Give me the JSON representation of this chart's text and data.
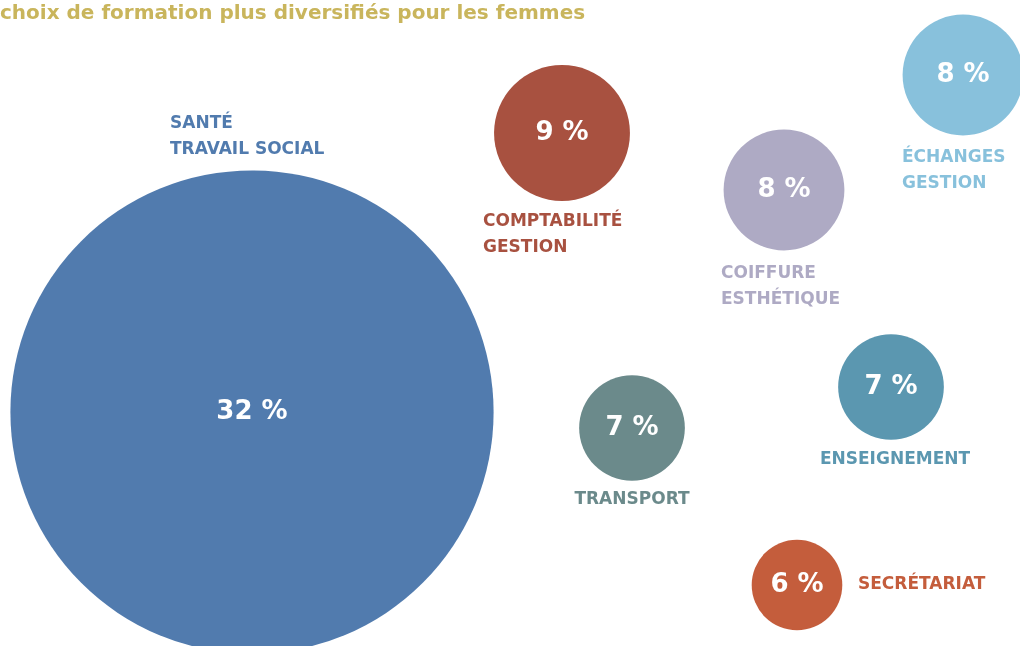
{
  "chart_data": {
    "type": "other",
    "title": "choix de formation plus diversifiés pour les femmes",
    "categories": [
      "SANTÉ\nTRAVAIL SOCIAL",
      "COMPTABILITÉ\nGESTION",
      "COIFFURE\nESTHÉTIQUE",
      "ÉCHANGES\nGESTION",
      "ENSEIGNEMENT",
      "TRANSPORT",
      "SECRÉTARIAT"
    ],
    "values": [
      32,
      9,
      8,
      8,
      7,
      7,
      6
    ],
    "value_labels": [
      "32 %",
      "9 %",
      "8 %",
      "8 %",
      "7 %",
      "7 %",
      "6 %"
    ],
    "colors": [
      "#517bae",
      "#a85140",
      "#aeaac4",
      "#88c1dc",
      "#5b97b0",
      "#6b8a8b",
      "#c45d3c"
    ]
  }
}
